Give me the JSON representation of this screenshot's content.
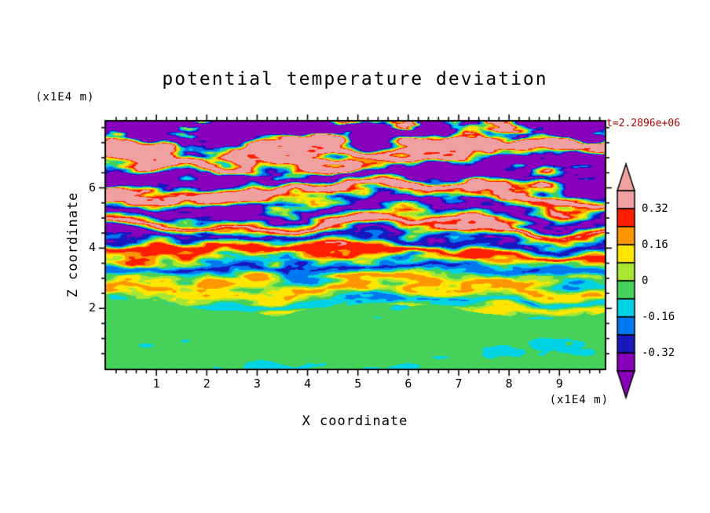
{
  "title": "potential temperature deviation",
  "timestamp": "t=2.2896e+06",
  "colors": {
    "background": "#ffffff",
    "frame": "#000000",
    "text": "#000000",
    "timestamp": "#aa0000"
  },
  "x_axis": {
    "label": "X coordinate",
    "unit": "(x1E4 m)",
    "major_ticks": [
      1,
      2,
      3,
      4,
      5,
      6,
      7,
      8,
      9
    ],
    "minor_tick_interval": 0.2,
    "range": [
      0,
      9.9
    ]
  },
  "z_axis": {
    "label": "Z coordinate",
    "unit": "(x1E4 m)",
    "major_ticks": [
      2,
      4,
      6
    ],
    "minor_tick_interval": 0.5,
    "range": [
      0,
      8.2
    ]
  },
  "colorbar": {
    "tick_labels": [
      "0.32",
      "0.16",
      "0",
      "-0.16",
      "-0.32"
    ],
    "tick_values": [
      0.32,
      0.16,
      0,
      -0.16,
      -0.32
    ],
    "over_arrow_color": "#f0a0a0",
    "under_arrow_color": "#8800bb"
  },
  "chart_data": {
    "type": "heatmap",
    "title": "potential temperature deviation",
    "xlabel": "X coordinate (x1E4 m)",
    "ylabel": "Z coordinate (x1E4 m)",
    "time_annotation": "t=2.2896e+06",
    "x_range": [
      0,
      9.9
    ],
    "z_range": [
      0,
      8.2
    ],
    "contour_levels": [
      -0.4,
      -0.32,
      -0.24,
      -0.16,
      -0.08,
      0,
      0.08,
      0.16,
      0.24,
      0.32,
      0.4
    ],
    "palette": [
      "#8800bb",
      "#1818c0",
      "#0078f0",
      "#00d2e6",
      "#46d25a",
      "#a8e632",
      "#ffe600",
      "#ff9600",
      "#ff1e00",
      "#f0a0a0"
    ],
    "field_description": "Filled contours of potential temperature deviation from a 2D simulation. Below z~2 (x1E4 m) a well-mixed boundary layer of weakly negative values (green, ~-0.05) with teal swirls; above it, horizontally stratified gravity-wave bands of alternating sign whose amplitude grows with height, exceeding +/-0.4 (pink/purple bands) near the domain top.",
    "field_params": {
      "bl_top": 2.0,
      "bl_mean": -0.05,
      "bl_noise1": 0.1,
      "bl_noise2": 0.07,
      "k0": 8.5,
      "k1": 0.3,
      "warp1": 9.0,
      "warp2": 3.5,
      "amp0": 0.13,
      "amp_slope": 0.085,
      "top_boost_z": 7.3,
      "top_boost": 0.3,
      "noise_amp": 0.1,
      "streak_xfreq": 0.55,
      "streak_zfreq": 1.2
    }
  }
}
